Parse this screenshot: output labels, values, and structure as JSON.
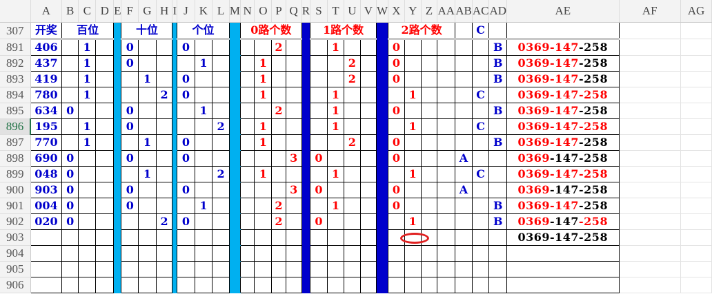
{
  "columns": [
    "A",
    "B",
    "C",
    "D",
    "E",
    "F",
    "G",
    "H",
    "I",
    "J",
    "K",
    "L",
    "M",
    "N",
    "O",
    "P",
    "Q",
    "R",
    "S",
    "T",
    "U",
    "V",
    "W",
    "X",
    "Y",
    "Z",
    "AA",
    "AB",
    "AC",
    "AD",
    "AE",
    "AF",
    "AG"
  ],
  "active_row": "896",
  "title_row": {
    "row": "307",
    "draw": "开奖",
    "hundreds": "百位",
    "tens": "十位",
    "units": "个位",
    "route0": "0路个数",
    "route1": "1路个数",
    "route2": "2路个数",
    "ac": "C"
  },
  "rows": [
    {
      "row": "891",
      "cells": {
        "A": "406",
        "C": "1",
        "F": "0",
        "J": "0",
        "P": "2",
        "T": "1",
        "X": "0",
        "AD": "B"
      },
      "ae": [
        "0369",
        "147",
        "258"
      ],
      "ae_red": [
        true,
        true,
        false
      ]
    },
    {
      "row": "892",
      "cells": {
        "A": "437",
        "C": "1",
        "F": "0",
        "K": "1",
        "O": "1",
        "U": "2",
        "X": "0",
        "AD": "B"
      },
      "ae": [
        "0369",
        "147",
        "258"
      ],
      "ae_red": [
        true,
        true,
        false
      ]
    },
    {
      "row": "893",
      "cells": {
        "A": "419",
        "C": "1",
        "G": "1",
        "J": "0",
        "O": "1",
        "U": "2",
        "X": "0",
        "AD": "B"
      },
      "ae": [
        "0369",
        "147",
        "258"
      ],
      "ae_red": [
        true,
        true,
        false
      ]
    },
    {
      "row": "894",
      "cells": {
        "A": "780",
        "C": "1",
        "H": "2",
        "J": "0",
        "O": "1",
        "T": "1",
        "Y": "1",
        "AC": "C"
      },
      "ae": [
        "0369",
        "147",
        "258"
      ],
      "ae_red": [
        true,
        true,
        true
      ]
    },
    {
      "row": "895",
      "cells": {
        "A": "634",
        "B": "0",
        "F": "0",
        "K": "1",
        "P": "2",
        "T": "1",
        "X": "0",
        "AD": "B"
      },
      "ae": [
        "0369",
        "147",
        "258"
      ],
      "ae_red": [
        true,
        true,
        false
      ]
    },
    {
      "row": "896",
      "cells": {
        "A": "195",
        "C": "1",
        "F": "0",
        "L": "2",
        "O": "1",
        "T": "1",
        "Y": "1",
        "AC": "C"
      },
      "ae": [
        "0369",
        "147",
        "258"
      ],
      "ae_red": [
        true,
        true,
        true
      ]
    },
    {
      "row": "897",
      "cells": {
        "A": "770",
        "C": "1",
        "G": "1",
        "J": "0",
        "O": "1",
        "U": "2",
        "X": "0",
        "AD": "B"
      },
      "ae": [
        "0369",
        "147",
        "258"
      ],
      "ae_red": [
        true,
        true,
        false
      ]
    },
    {
      "row": "898",
      "cells": {
        "A": "690",
        "B": "0",
        "F": "0",
        "J": "0",
        "Q": "3",
        "S": "0",
        "X": "0",
        "AB": "A"
      },
      "ae": [
        "0369",
        "147",
        "258"
      ],
      "ae_red": [
        true,
        false,
        false
      ]
    },
    {
      "row": "899",
      "cells": {
        "A": "048",
        "B": "0",
        "G": "1",
        "L": "2",
        "O": "1",
        "T": "1",
        "Y": "1",
        "AC": "C"
      },
      "ae": [
        "0369",
        "147",
        "258"
      ],
      "ae_red": [
        true,
        true,
        true
      ]
    },
    {
      "row": "900",
      "cells": {
        "A": "903",
        "B": "0",
        "F": "0",
        "J": "0",
        "Q": "3",
        "S": "0",
        "X": "0",
        "AB": "A"
      },
      "ae": [
        "0369",
        "147",
        "258"
      ],
      "ae_red": [
        true,
        false,
        false
      ]
    },
    {
      "row": "901",
      "cells": {
        "A": "004",
        "B": "0",
        "F": "0",
        "K": "1",
        "P": "2",
        "T": "1",
        "X": "0",
        "AD": "B"
      },
      "ae": [
        "0369",
        "147",
        "258"
      ],
      "ae_red": [
        true,
        true,
        false
      ]
    },
    {
      "row": "902",
      "cells": {
        "A": "020",
        "B": "0",
        "H": "2",
        "J": "0",
        "P": "2",
        "S": "0",
        "Y": "1",
        "AD": "B"
      },
      "ae": [
        "0369",
        "147",
        "258"
      ],
      "ae_red": [
        true,
        false,
        true
      ]
    },
    {
      "row": "903",
      "cells": {},
      "ae": [
        "0369",
        "147",
        "258"
      ],
      "ae_red": [
        false,
        false,
        false
      ]
    },
    {
      "row": "904",
      "cells": {}
    },
    {
      "row": "905",
      "cells": {}
    },
    {
      "row": "906",
      "cells": {}
    }
  ],
  "colors": {
    "digit": "#0000cc",
    "route": "#ff0000",
    "separator_light": "#00b0f0",
    "separator_dark": "#0000cc",
    "highlight_ellipse": "#e02020"
  }
}
